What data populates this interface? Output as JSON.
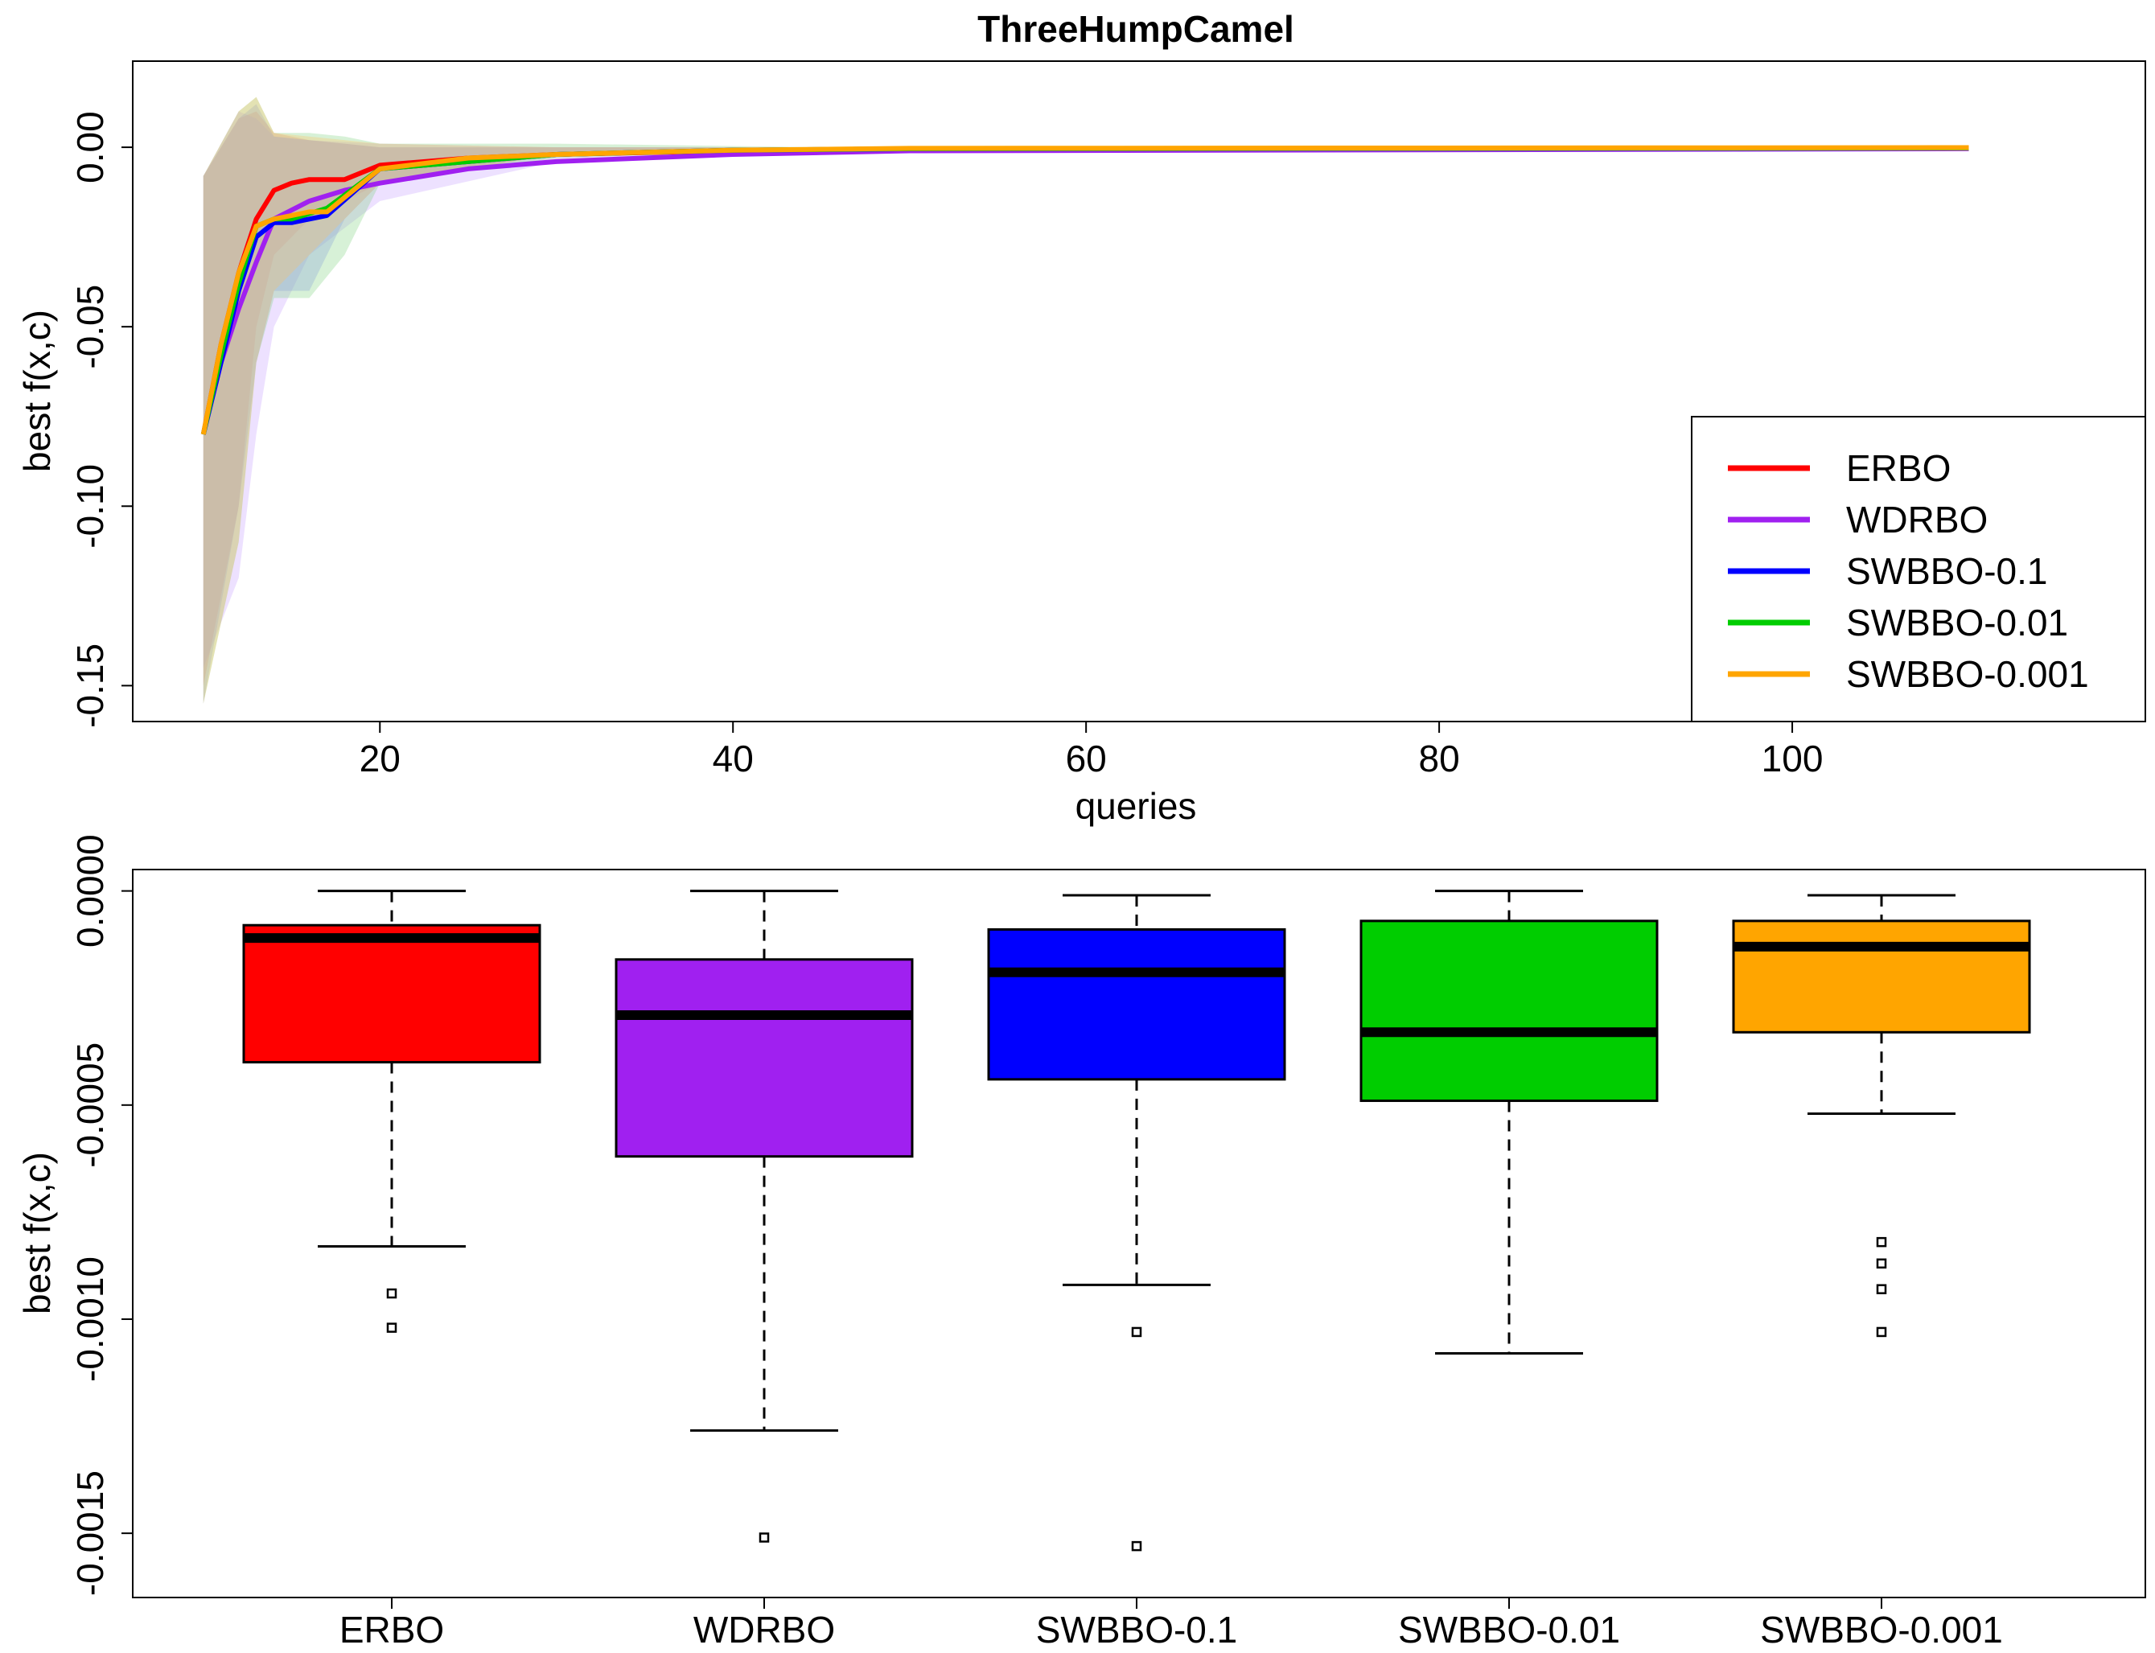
{
  "chart_data": [
    {
      "type": "line",
      "title": "ThreeHumpCamel",
      "xlabel": "queries",
      "ylabel": "best f(x,c)",
      "xlim": [
        6,
        120
      ],
      "ylim": [
        -0.16,
        0.024
      ],
      "xticks": [
        20,
        40,
        60,
        80,
        100
      ],
      "yticks": [
        0.0,
        -0.05,
        -0.1,
        -0.15
      ],
      "ytick_labels": [
        "0.00",
        "-0.05",
        "-0.10",
        "-0.15"
      ],
      "legend_position": "bottom-right",
      "legend_order": [
        "ERBO",
        "WDRBO",
        "SWBBO-0.1",
        "SWBBO-0.01",
        "SWBBO-0.001"
      ],
      "bands": [
        {
          "name": "ERBO",
          "color": "#ff7a7a",
          "x": [
            10,
            12,
            13,
            14,
            16,
            20,
            30,
            45,
            110
          ],
          "upper": [
            -0.008,
            0.008,
            0.01,
            0.004,
            0.002,
            0.0,
            0.0,
            0.0,
            0.0
          ],
          "lower": [
            -0.15,
            -0.1,
            -0.05,
            -0.03,
            -0.02,
            -0.01,
            -0.002,
            -0.0005,
            -0.0003
          ]
        },
        {
          "name": "WDRBO",
          "color": "#c39aff",
          "x": [
            10,
            12,
            13,
            14,
            16,
            20,
            30,
            45,
            110
          ],
          "upper": [
            -0.008,
            0.01,
            0.008,
            0.003,
            0.002,
            0.001,
            0.0,
            0.0,
            0.0
          ],
          "lower": [
            -0.145,
            -0.12,
            -0.08,
            -0.05,
            -0.03,
            -0.015,
            -0.004,
            -0.001,
            -0.0005
          ]
        },
        {
          "name": "SWBBO-0.1",
          "color": "#8a8aff",
          "x": [
            10,
            12,
            13,
            14,
            16,
            18,
            20,
            30,
            45,
            110
          ],
          "upper": [
            -0.008,
            0.008,
            0.012,
            0.003,
            0.002,
            0.001,
            0.0,
            0.0,
            0.0,
            0.0
          ],
          "lower": [
            -0.155,
            -0.1,
            -0.06,
            -0.04,
            -0.04,
            -0.02,
            -0.01,
            -0.002,
            -0.0005,
            -0.0003
          ]
        },
        {
          "name": "SWBBO-0.01",
          "color": "#7ad27a",
          "x": [
            10,
            12,
            13,
            14,
            16,
            18,
            20,
            30,
            45,
            110
          ],
          "upper": [
            -0.008,
            0.01,
            0.014,
            0.004,
            0.004,
            0.003,
            0.001,
            0.001,
            0.0,
            0.0
          ],
          "lower": [
            -0.155,
            -0.11,
            -0.06,
            -0.042,
            -0.042,
            -0.03,
            -0.01,
            -0.003,
            -0.0005,
            -0.0003
          ]
        },
        {
          "name": "SWBBO-0.001",
          "color": "#ffc060",
          "x": [
            10,
            12,
            13,
            14,
            16,
            20,
            30,
            45,
            110
          ],
          "upper": [
            -0.008,
            0.01,
            0.014,
            0.004,
            0.003,
            0.001,
            0.0,
            0.0,
            0.0
          ],
          "lower": [
            -0.155,
            -0.11,
            -0.06,
            -0.04,
            -0.03,
            -0.01,
            -0.002,
            -0.0005,
            -0.0003
          ]
        }
      ],
      "series": [
        {
          "name": "ERBO",
          "color": "#ff0000",
          "x": [
            10,
            11,
            12,
            13,
            14,
            15,
            16,
            18,
            20,
            25,
            30,
            40,
            50,
            110
          ],
          "values": [
            -0.08,
            -0.055,
            -0.035,
            -0.02,
            -0.012,
            -0.01,
            -0.009,
            -0.009,
            -0.005,
            -0.003,
            -0.002,
            -0.001,
            -0.0004,
            -0.0002
          ]
        },
        {
          "name": "WDRBO",
          "color": "#a020f0",
          "x": [
            10,
            11,
            12,
            13,
            14,
            16,
            18,
            20,
            25,
            30,
            40,
            50,
            110
          ],
          "values": [
            -0.08,
            -0.06,
            -0.045,
            -0.032,
            -0.02,
            -0.015,
            -0.012,
            -0.01,
            -0.006,
            -0.004,
            -0.002,
            -0.001,
            -0.0004
          ]
        },
        {
          "name": "SWBBO-0.1",
          "color": "#0000ff",
          "x": [
            10,
            11,
            12,
            13,
            14,
            15,
            17,
            20,
            25,
            30,
            40,
            50,
            110
          ],
          "values": [
            -0.08,
            -0.06,
            -0.04,
            -0.025,
            -0.021,
            -0.021,
            -0.019,
            -0.006,
            -0.004,
            -0.002,
            -0.0008,
            -0.0004,
            -0.0002
          ]
        },
        {
          "name": "SWBBO-0.01",
          "color": "#00cd00",
          "x": [
            10,
            11,
            12,
            13,
            14,
            15,
            17,
            20,
            25,
            30,
            40,
            50,
            110
          ],
          "values": [
            -0.08,
            -0.058,
            -0.038,
            -0.022,
            -0.02,
            -0.02,
            -0.017,
            -0.006,
            -0.004,
            -0.002,
            -0.0008,
            -0.0004,
            -0.0002
          ]
        },
        {
          "name": "SWBBO-0.001",
          "color": "#ffa500",
          "x": [
            10,
            11,
            12,
            13,
            14,
            15,
            16,
            17,
            19,
            20,
            25,
            30,
            40,
            50,
            110
          ],
          "values": [
            -0.08,
            -0.055,
            -0.035,
            -0.022,
            -0.02,
            -0.019,
            -0.018,
            -0.018,
            -0.01,
            -0.006,
            -0.003,
            -0.002,
            -0.0008,
            -0.0003,
            -0.0001
          ]
        }
      ]
    },
    {
      "type": "box",
      "title": "",
      "xlabel": "",
      "ylabel": "best f(x,c)",
      "ylim": [
        -0.00165,
        5e-05
      ],
      "yticks": [
        0.0,
        -0.0005,
        -0.001,
        -0.0015
      ],
      "ytick_labels": [
        "0.0000",
        "-0.0005",
        "-0.0010",
        "-0.0015"
      ],
      "categories": [
        "ERBO",
        "WDRBO",
        "SWBBO-0.1",
        "SWBBO-0.01",
        "SWBBO-0.001"
      ],
      "boxes": [
        {
          "name": "ERBO",
          "color": "#ff0000",
          "whisker_low": -0.00083,
          "q1": -0.0004,
          "median": -0.00011,
          "q3": -8e-05,
          "whisker_high": 0.0,
          "outliers": [
            -0.00094,
            -0.00102
          ]
        },
        {
          "name": "WDRBO",
          "color": "#a020f0",
          "whisker_low": -0.00126,
          "q1": -0.00062,
          "median": -0.00029,
          "q3": -0.00016,
          "whisker_high": 0.0,
          "outliers": [
            -0.00151
          ]
        },
        {
          "name": "SWBBO-0.1",
          "color": "#0000ff",
          "whisker_low": -0.00092,
          "q1": -0.00044,
          "median": -0.00019,
          "q3": -9e-05,
          "whisker_high": -1e-05,
          "outliers": [
            -0.00103,
            -0.00153
          ]
        },
        {
          "name": "SWBBO-0.01",
          "color": "#00cd00",
          "whisker_low": -0.00108,
          "q1": -0.00049,
          "median": -0.00033,
          "q3": -7e-05,
          "whisker_high": 0.0,
          "outliers": []
        },
        {
          "name": "SWBBO-0.001",
          "color": "#ffa500",
          "whisker_low": -0.00052,
          "q1": -0.00033,
          "median": -0.00013,
          "q3": -7e-05,
          "whisker_high": -1e-05,
          "outliers": [
            -0.00082,
            -0.00087,
            -0.00093,
            -0.00103
          ]
        }
      ]
    }
  ]
}
